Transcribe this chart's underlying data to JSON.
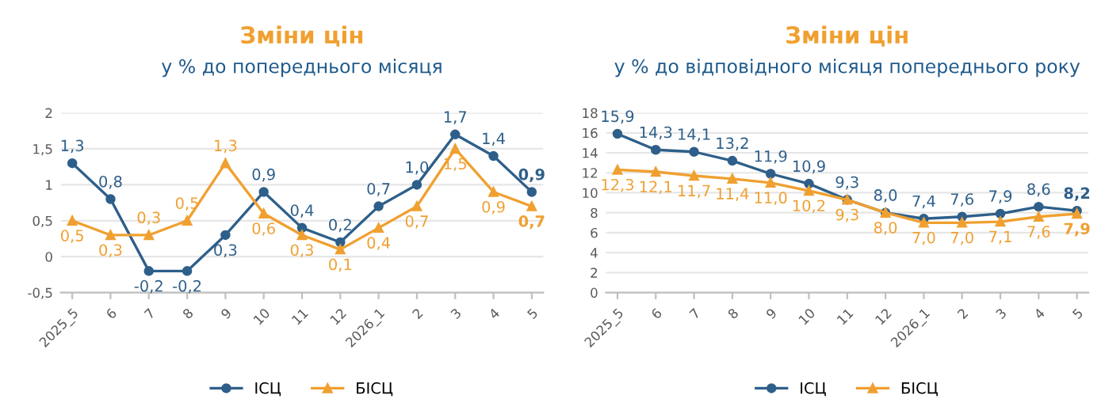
{
  "chart_data": [
    {
      "type": "line",
      "title": "Зміни цін",
      "subtitle": "у % до попереднього місяця",
      "categories": [
        "2025_5",
        "6",
        "7",
        "8",
        "9",
        "10",
        "11",
        "12",
        "2026_1",
        "2",
        "3",
        "4",
        "5"
      ],
      "series": [
        {
          "name": "ІСЦ",
          "color": "#2e5f8a",
          "marker": "circle",
          "values": [
            1.3,
            0.8,
            -0.2,
            -0.2,
            0.3,
            0.9,
            0.4,
            0.2,
            0.7,
            1.0,
            1.7,
            1.4,
            0.9
          ],
          "value_labels": [
            "1,3",
            "0,8",
            "-0,2",
            "-0,2",
            "0,3",
            "0,9",
            "0,4",
            "0,2",
            "0,7",
            "1,0",
            "1,7",
            "1,4",
            "0,9"
          ]
        },
        {
          "name": "БІСЦ",
          "color": "#f0a030",
          "marker": "triangle",
          "values": [
            0.5,
            0.3,
            0.3,
            0.5,
            1.3,
            0.6,
            0.3,
            0.1,
            0.4,
            0.7,
            1.5,
            0.9,
            0.7
          ],
          "value_labels": [
            "0,5",
            "0,3",
            "0,3",
            "0,5",
            "1,3",
            "0,6",
            "0,3",
            "0,1",
            "0,4",
            "0,7",
            "1,5",
            "0,9",
            "0,7"
          ]
        }
      ],
      "ylim": [
        -0.5,
        2
      ],
      "yticks": [
        {
          "value": -0.5,
          "label": "-0,5"
        },
        0,
        {
          "value": 0.5,
          "label": "0,5"
        },
        1,
        {
          "value": 1.5,
          "label": "1,5"
        },
        2
      ],
      "grid": "y",
      "legend": "bottom",
      "line_style": "solid"
    },
    {
      "type": "line",
      "title": "Зміни цін",
      "subtitle": "у % до відповідного місяця попереднього року",
      "categories": [
        "2025_5",
        "6",
        "7",
        "8",
        "9",
        "10",
        "11",
        "12",
        "2026_1",
        "2",
        "3",
        "4",
        "5"
      ],
      "series": [
        {
          "name": "ІСЦ",
          "color": "#2e5f8a",
          "marker": "circle",
          "values": [
            15.9,
            14.3,
            14.1,
            13.2,
            11.9,
            10.9,
            9.3,
            8.0,
            7.4,
            7.6,
            7.9,
            8.6,
            8.2
          ],
          "value_labels": [
            "15,9",
            "14,3",
            "14,1",
            "13,2",
            "11,9",
            "10,9",
            "9,3",
            "8,0",
            "7,4",
            "7,6",
            "7,9",
            "8,6",
            "8,2"
          ]
        },
        {
          "name": "БІСЦ",
          "color": "#f0a030",
          "marker": "triangle",
          "values": [
            12.3,
            12.1,
            11.7,
            11.4,
            11.0,
            10.2,
            9.3,
            8.0,
            7.0,
            7.0,
            7.1,
            7.6,
            7.9
          ],
          "value_labels": [
            "12,3",
            "12,1",
            "11,7",
            "11,4",
            "11,0",
            "10,2",
            "9,3",
            "8,0",
            "7,0",
            "7,0",
            "7,1",
            "7,6",
            "7,9"
          ]
        }
      ],
      "ylim": [
        0,
        18
      ],
      "yticks": [
        0,
        2,
        4,
        6,
        8,
        10,
        12,
        14,
        16,
        18
      ],
      "grid": "y",
      "legend": "bottom",
      "line_style": "solid"
    }
  ]
}
